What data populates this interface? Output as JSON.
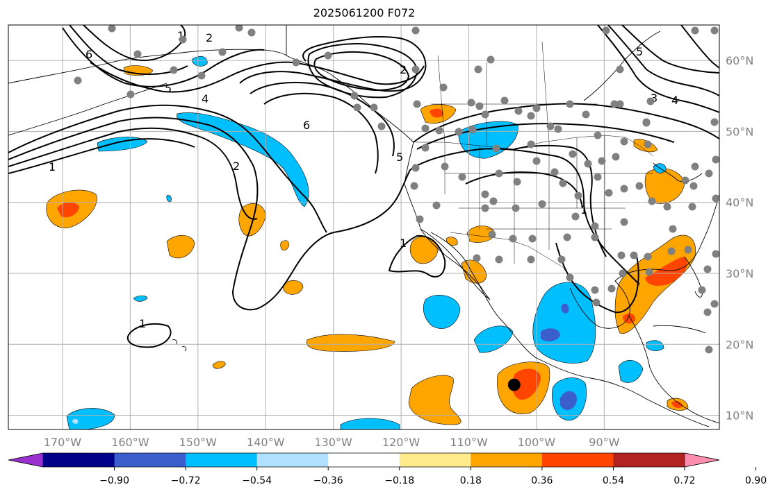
{
  "title": "2025061200 F072",
  "map": {
    "lon_range": [
      -178,
      -73
    ],
    "lat_range": [
      8,
      65
    ],
    "lon_ticks": [
      {
        "value": -170,
        "label": "170°W"
      },
      {
        "value": -160,
        "label": "160°W"
      },
      {
        "value": -150,
        "label": "150°W"
      },
      {
        "value": -140,
        "label": "140°W"
      },
      {
        "value": -130,
        "label": "130°W"
      },
      {
        "value": -120,
        "label": "120°W"
      },
      {
        "value": -110,
        "label": "110°W"
      },
      {
        "value": -100,
        "label": "100°W"
      },
      {
        "value": -90,
        "label": "90°W"
      }
    ],
    "lat_ticks": [
      {
        "value": 10,
        "label": "10°N"
      },
      {
        "value": 20,
        "label": "20°N"
      },
      {
        "value": 30,
        "label": "30°N"
      },
      {
        "value": 40,
        "label": "40°N"
      },
      {
        "value": 50,
        "label": "50°N"
      },
      {
        "value": 60,
        "label": "60°N"
      }
    ],
    "contour_labels": [
      "1",
      "2",
      "3",
      "4",
      "5",
      "6"
    ],
    "marker_color": "#808080",
    "highlight_marker": {
      "lon": -103.3,
      "lat": 14.3,
      "color": "#000000"
    }
  },
  "colorbar": {
    "colors": [
      "#9b30d0",
      "#00008b",
      "#3a5fcd",
      "#00bfff",
      "#b0e2ff",
      "#ffffff",
      "#ffeb8c",
      "#ffa500",
      "#ff4500",
      "#b22222",
      "#ff8db0"
    ],
    "ticks": [
      "−0.90",
      "−0.72",
      "−0.54",
      "−0.36",
      "−0.18",
      "0.18",
      "0.36",
      "0.54",
      "0.72",
      "0.90"
    ]
  }
}
